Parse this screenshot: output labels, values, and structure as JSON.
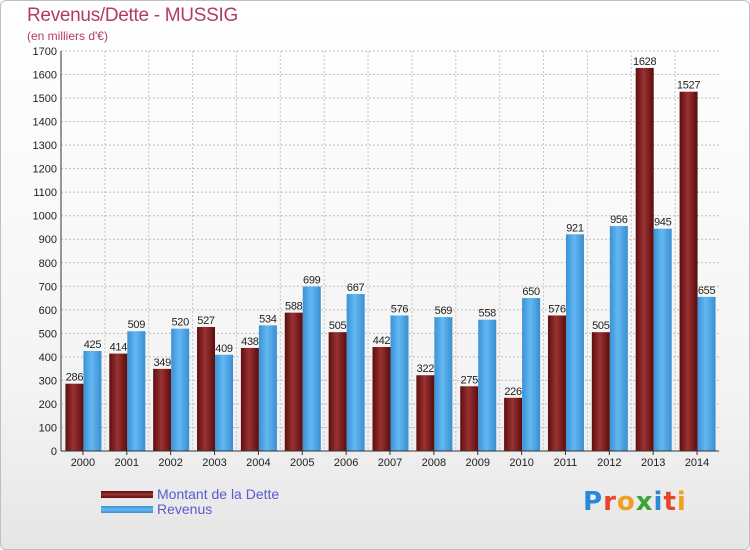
{
  "header": {
    "title": "Revenus/Dette - MUSSIG",
    "subtitle": "(en milliers d'€)"
  },
  "colors": {
    "debt": "#7a1e1e",
    "revenue": "#4aa6e6",
    "title": "#b23a6a",
    "legend_text": "#5a5ad2"
  },
  "legend": {
    "debt_label": "Montant de la Dette",
    "revenue_label": "Revenus"
  },
  "logo": {
    "text": "Proxiti",
    "letters": [
      "P",
      "r",
      "o",
      "x",
      "i",
      "t",
      "i"
    ]
  },
  "chart_data": {
    "type": "bar",
    "categories": [
      "2000",
      "2001",
      "2002",
      "2003",
      "2004",
      "2005",
      "2006",
      "2007",
      "2008",
      "2009",
      "2010",
      "2011",
      "2012",
      "2013",
      "2014"
    ],
    "series": [
      {
        "name": "Montant de la Dette",
        "values": [
          286,
          414,
          349,
          527,
          438,
          588,
          505,
          442,
          322,
          275,
          226,
          576,
          505,
          1628,
          1527
        ]
      },
      {
        "name": "Revenus",
        "values": [
          425,
          509,
          520,
          409,
          534,
          699,
          667,
          576,
          569,
          558,
          650,
          921,
          956,
          945,
          655
        ]
      }
    ],
    "ylim": [
      0,
      1700
    ],
    "yticks": [
      0,
      100,
      200,
      300,
      400,
      500,
      600,
      700,
      800,
      900,
      1000,
      1100,
      1200,
      1300,
      1400,
      1500,
      1600,
      1700
    ],
    "title": "Revenus/Dette - MUSSIG",
    "ylabel": "(en milliers d'€)",
    "xlabel": "",
    "grid": true,
    "legend_position": "bottom-left"
  }
}
